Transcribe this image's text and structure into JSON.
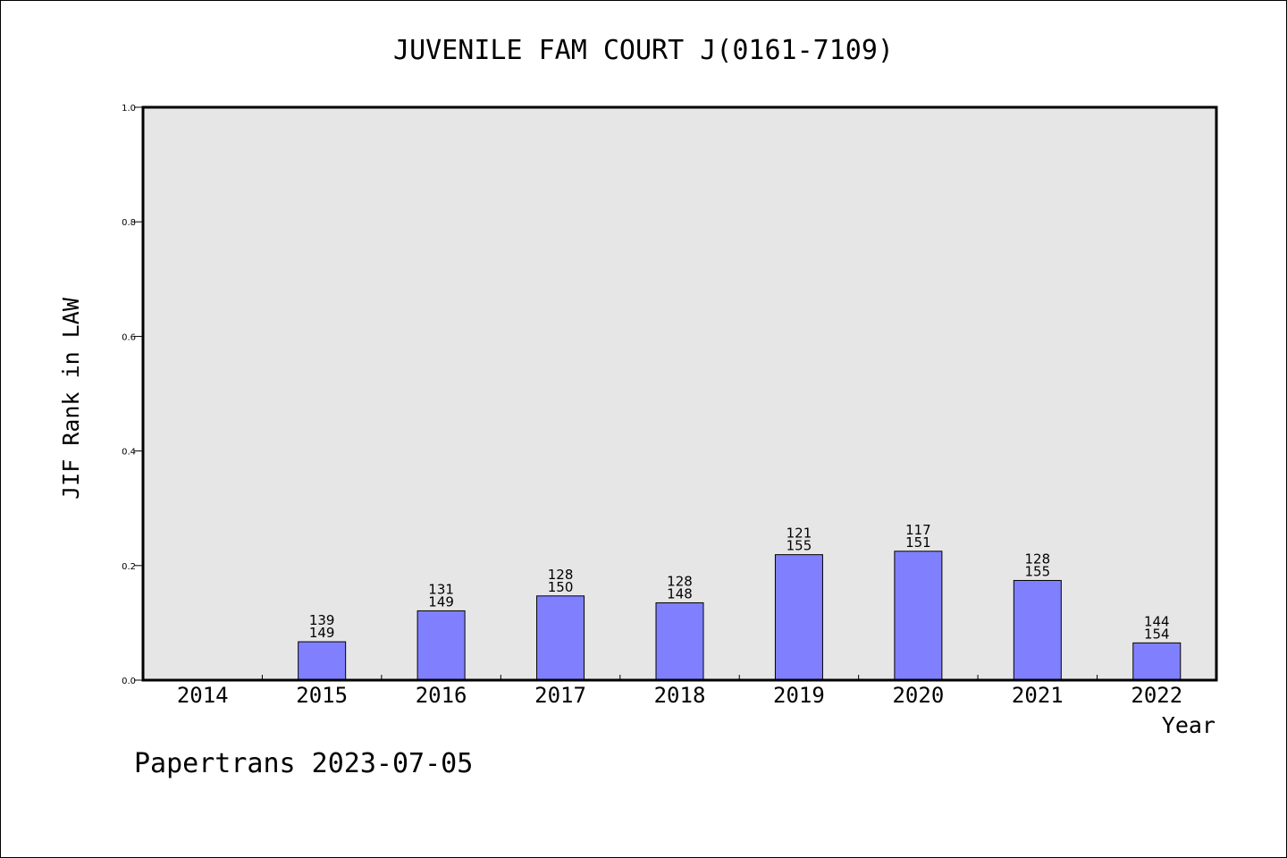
{
  "chart_data": {
    "type": "bar",
    "title": "JUVENILE FAM COURT J(0161-7109)",
    "xlabel": "Year",
    "ylabel": "JIF Rank in LAW",
    "ylim": [
      0,
      1.0
    ],
    "yticks": [
      "0.0",
      "0.2",
      "0.4",
      "0.6",
      "0.8",
      "1.0"
    ],
    "categories": [
      "2014",
      "2015",
      "2016",
      "2017",
      "2018",
      "2019",
      "2020",
      "2021",
      "2022"
    ],
    "values": [
      null,
      0.067,
      0.121,
      0.147,
      0.135,
      0.219,
      0.225,
      0.174,
      0.065
    ],
    "labels_top": [
      "",
      "139",
      "131",
      "128",
      "128",
      "121",
      "117",
      "128",
      "144"
    ],
    "labels_bottom": [
      "",
      "149",
      "149",
      "150",
      "148",
      "155",
      "151",
      "155",
      "154"
    ],
    "bar_color": "#8080ff",
    "plot_background": "#e6e6e6",
    "grid": false
  },
  "footer": "Papertrans 2023-07-05"
}
